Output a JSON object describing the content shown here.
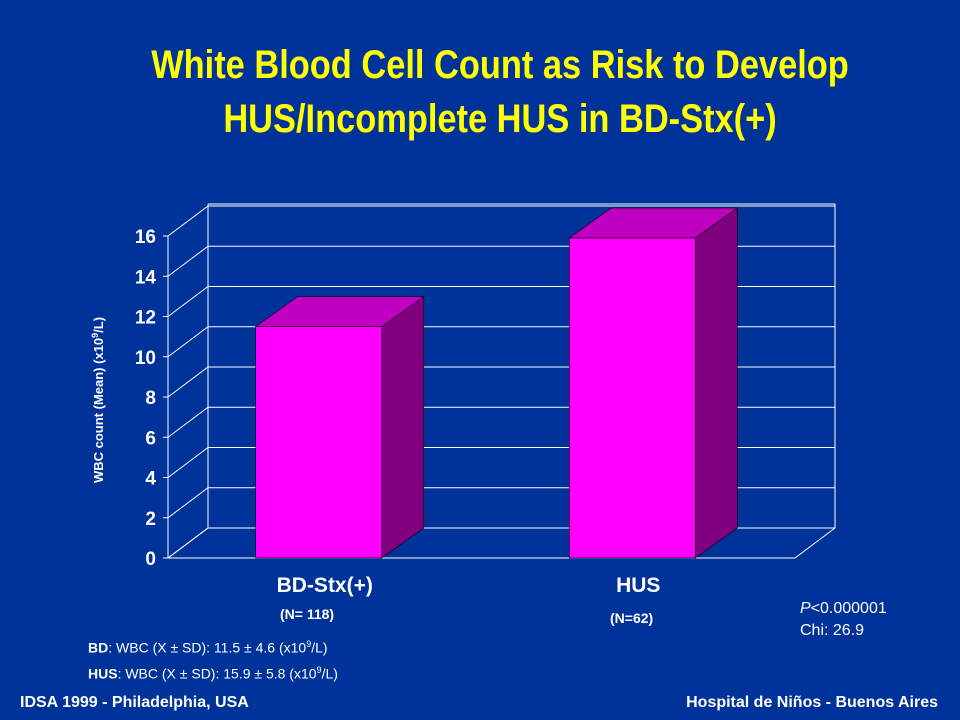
{
  "title": {
    "line1": "White Blood Cell Count as Risk to Develop",
    "line2": "HUS/Incomplete HUS in BD-Stx(+)"
  },
  "y_axis": {
    "label_prefix": "WBC count (Mean) (x10",
    "label_sup": "9",
    "label_suffix": "/L)"
  },
  "chart_data": {
    "type": "bar",
    "categories": [
      "BD-Stx(+)",
      "HUS"
    ],
    "values": [
      11.5,
      15.9
    ],
    "title": "White Blood Cell Count as Risk to Develop HUS/Incomplete HUS in BD-Stx(+)",
    "xlabel": "",
    "ylabel": "WBC count (Mean) (x10⁹/L)",
    "ylim": [
      0,
      16
    ],
    "yticks": [
      0,
      2,
      4,
      6,
      8,
      10,
      12,
      14,
      16
    ],
    "grid": true,
    "legend": "none",
    "bar_color": "#FF00FF",
    "bar_side_color": "#800080",
    "bar_top_color": "#C000C0",
    "axis_color": "#FFFFFF"
  },
  "counts": {
    "bd": "(N= 118)",
    "hus": "(N=62)"
  },
  "stats": {
    "bd_label": "BD",
    "bd_text": ": WBC (X ± SD): 11.5 ± 4.6 (x10",
    "bd_sup": "9",
    "bd_end": "/L)",
    "hus_label": "HUS",
    "hus_text": ": WBC (X ± SD): 15.9 ± 5.8 (x10",
    "hus_sup": "9",
    "hus_end": "/L)"
  },
  "pvalue": {
    "p_label": "P",
    "p_text": "<0.000001",
    "chi": "Chi: 26.9"
  },
  "footer": {
    "left": "IDSA 1999 - Philadelphia, USA",
    "right": "Hospital de Niños - Buenos Aires"
  }
}
